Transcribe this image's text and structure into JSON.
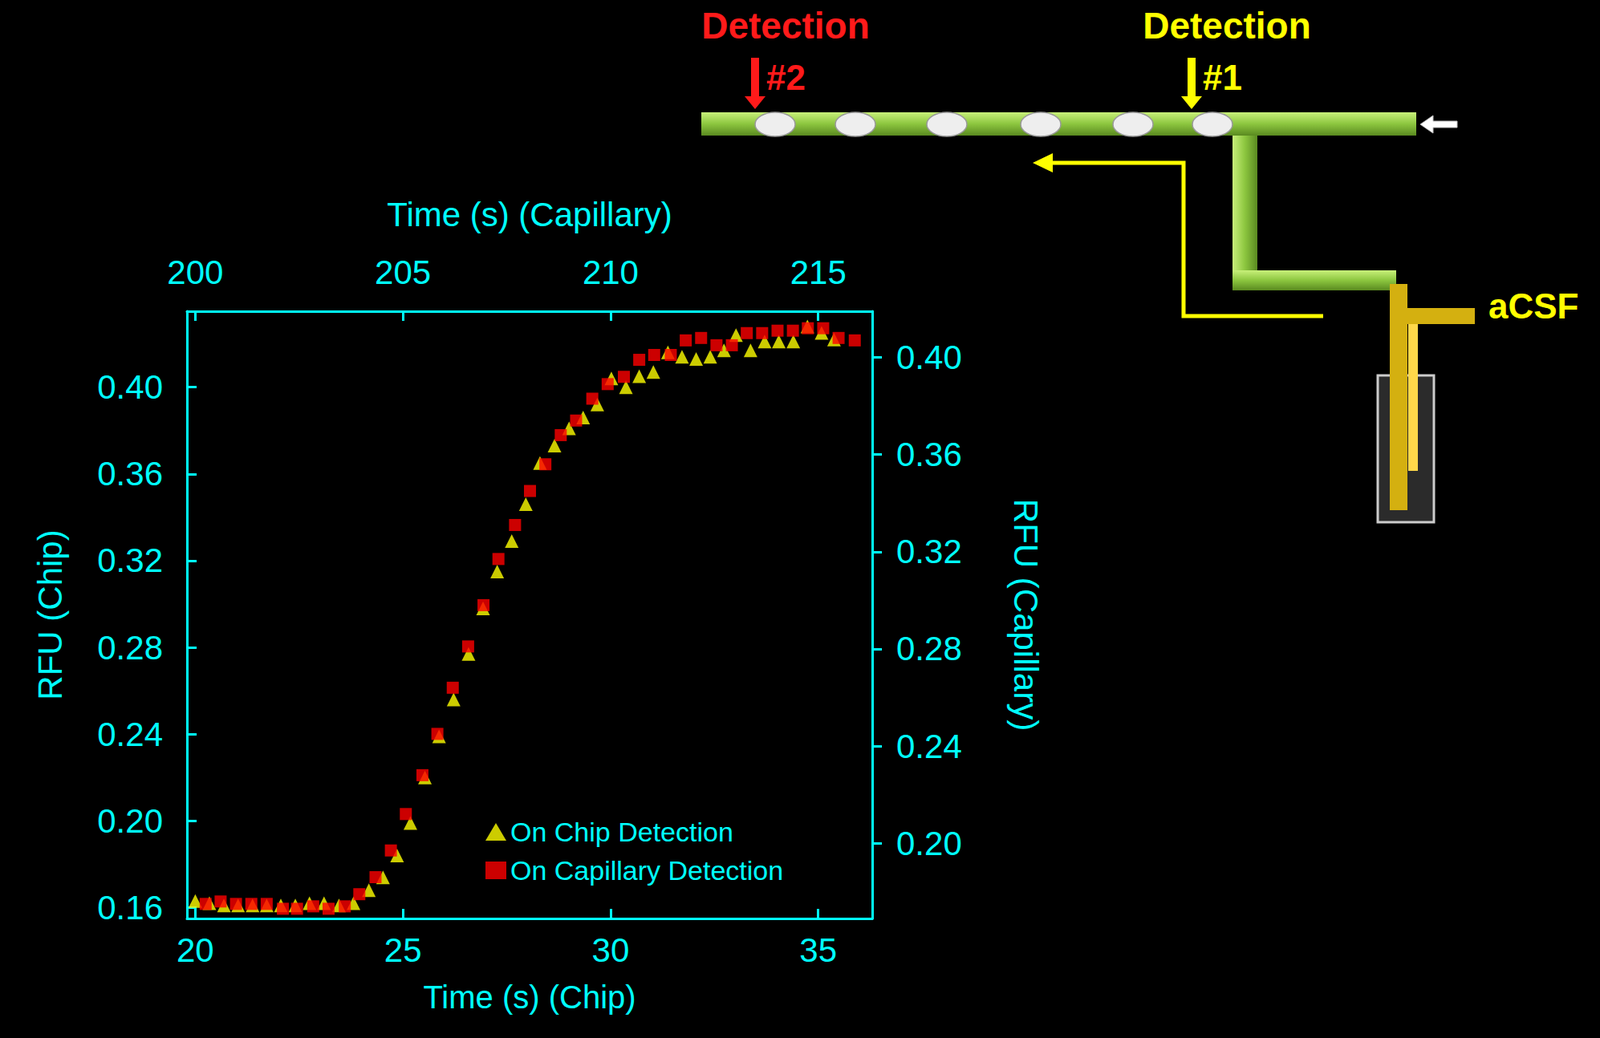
{
  "chart_data": {
    "type": "scatter",
    "x_label": "Time (s) (Chip)",
    "x2_label": "Time (s) (Capillary)",
    "y_label": "RFU (Chip)",
    "y2_label": "RFU (Capillary)",
    "xlim": [
      19.8,
      36.3
    ],
    "xticks": [
      20,
      25,
      30,
      35
    ],
    "x2lim": [
      199.8,
      216.3
    ],
    "x2ticks": [
      200,
      205,
      210,
      215
    ],
    "ylim": [
      0.155,
      0.435
    ],
    "yticks": [
      0.16,
      {
        "value": 0.2,
        "label": "0.20"
      },
      0.24,
      0.28,
      0.32,
      0.36,
      {
        "value": 0.4,
        "label": "0.40"
      }
    ],
    "y2lim": [
      0.169,
      0.419
    ],
    "y2ticks": [
      {
        "value": 0.2,
        "label": "0.20"
      },
      0.24,
      0.28,
      0.32,
      0.36,
      {
        "value": 0.4,
        "label": "0.40"
      }
    ],
    "grid": false,
    "legend": "lower right",
    "series": [
      {
        "name": "On Chip Detection",
        "color": "#ffff00",
        "marker": "triangle",
        "x": [
          20.0,
          20.34,
          20.69,
          21.03,
          21.38,
          21.72,
          22.06,
          22.41,
          22.75,
          23.1,
          23.46,
          23.81,
          24.18,
          24.52,
          24.86,
          25.18,
          25.53,
          25.87,
          26.22,
          26.58,
          26.93,
          27.27,
          27.62,
          27.96,
          28.3,
          28.65,
          29.0,
          29.34,
          29.68,
          30.02,
          30.37,
          30.69,
          31.03,
          31.38,
          31.72,
          32.06,
          32.4,
          32.73,
          33.02,
          33.37,
          33.71,
          34.05,
          34.4,
          34.74,
          35.08,
          35.38
        ],
        "values": [
          0.163,
          0.162,
          0.161,
          0.161,
          0.161,
          0.161,
          0.161,
          0.161,
          0.162,
          0.162,
          0.161,
          0.162,
          0.168,
          0.174,
          0.184,
          0.199,
          0.22,
          0.239,
          0.256,
          0.277,
          0.298,
          0.315,
          0.329,
          0.346,
          0.365,
          0.373,
          0.381,
          0.386,
          0.392,
          0.404,
          0.4,
          0.405,
          0.407,
          0.416,
          0.414,
          0.413,
          0.414,
          0.417,
          0.424,
          0.417,
          0.421,
          0.421,
          0.421,
          0.428,
          0.425,
          0.422
        ]
      },
      {
        "name": "On Capillary Detection",
        "color": "#ff0000",
        "marker": "square",
        "axis": "y2",
        "x": [
          200.25,
          200.61,
          200.98,
          201.35,
          201.72,
          202.11,
          202.45,
          202.84,
          203.21,
          203.6,
          203.95,
          204.34,
          204.71,
          205.07,
          205.47,
          205.83,
          206.2,
          206.57,
          206.94,
          207.3,
          207.7,
          208.06,
          208.43,
          208.8,
          209.17,
          209.56,
          209.93,
          210.32,
          210.69,
          211.05,
          211.45,
          211.81,
          212.18,
          212.55,
          212.92,
          213.28,
          213.65,
          214.02,
          214.39,
          214.75,
          215.12,
          215.49,
          215.88
        ],
        "values": [
          0.175,
          0.176,
          0.175,
          0.175,
          0.175,
          0.173,
          0.173,
          0.174,
          0.173,
          0.174,
          0.179,
          0.186,
          0.197,
          0.212,
          0.228,
          0.245,
          0.264,
          0.281,
          0.298,
          0.317,
          0.331,
          0.345,
          0.356,
          0.368,
          0.374,
          0.383,
          0.389,
          0.392,
          0.399,
          0.401,
          0.401,
          0.407,
          0.408,
          0.405,
          0.405,
          0.41,
          0.41,
          0.411,
          0.411,
          0.412,
          0.412,
          0.408,
          0.407
        ]
      }
    ],
    "annotations": [
      {
        "text": "Detection",
        "color": "#ff1a1a"
      },
      {
        "text": "#2",
        "color": "#ff1a1a"
      },
      {
        "text": "Detection",
        "color": "#ffff00"
      },
      {
        "text": "#1",
        "color": "#ffff00"
      },
      {
        "text": "aCSF",
        "color": "#ffff00"
      }
    ]
  }
}
